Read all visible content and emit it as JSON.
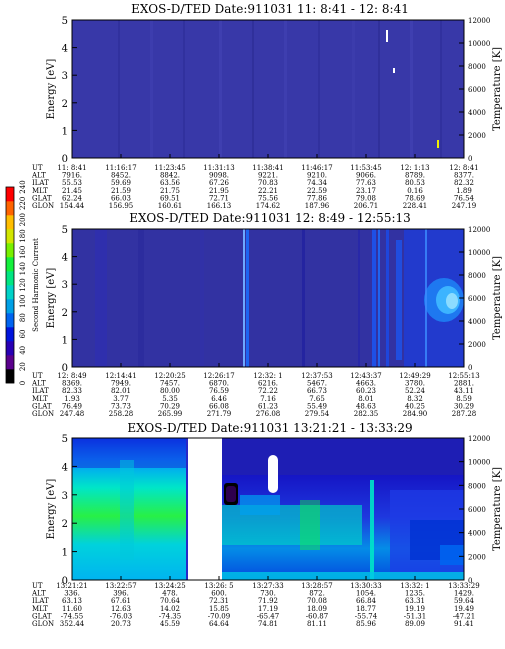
{
  "colorbar": {
    "title": "Second Harmonic Current",
    "ticks": [
      "0",
      "20",
      "40",
      "60",
      "80",
      "100",
      "120",
      "140",
      "160",
      "180",
      "200",
      "220",
      "240"
    ],
    "colors": [
      "#000000",
      "#5a008c",
      "#2800b4",
      "#0014dc",
      "#0064f0",
      "#00a0e6",
      "#00d2c8",
      "#00e682",
      "#14f03c",
      "#78f000",
      "#d2e600",
      "#ffbe00",
      "#ff6400",
      "#ff0000"
    ]
  },
  "chart_data": [
    {
      "type": "heatmap",
      "title": "EXOS-D/TED   Date:911031  11: 8:41 - 12: 8:41",
      "ylabel": "Energy [eV]",
      "y2label": "Temperature [K]",
      "ylim": [
        0,
        5
      ],
      "y2lim": [
        0,
        12000
      ],
      "yticks": [
        "0",
        "1",
        "2",
        "3",
        "4",
        "5"
      ],
      "y2ticks": [
        "0",
        "2000",
        "4000",
        "6000",
        "8000",
        "10000",
        "12000"
      ],
      "background": "#3838a8",
      "row_labels": [
        "UT",
        "ALT",
        "ILAT",
        "MLT",
        "GLAT",
        "GLON"
      ],
      "columns": [
        [
          "11: 8:41",
          "7916.",
          "55.53",
          "21.45",
          "62.24",
          "154.44"
        ],
        [
          "11:16:17",
          "8452.",
          "59.69",
          "21.59",
          "66.03",
          "156.95"
        ],
        [
          "11:23:45",
          "8842.",
          "63.56",
          "21.75",
          "69.51",
          "160.61"
        ],
        [
          "11:31:13",
          "9098.",
          "67.26",
          "21.95",
          "72.71",
          "166.13"
        ],
        [
          "11:38:41",
          "9221.",
          "70.83",
          "22.21",
          "75.56",
          "174.62"
        ],
        [
          "11:46:17",
          "9210.",
          "74.34",
          "22.59",
          "77.86",
          "187.96"
        ],
        [
          "11:53:45",
          "9066.",
          "77.63",
          "23.17",
          "79.08",
          "206.71"
        ],
        [
          "12: 1:13",
          "8789.",
          "80.53",
          "0.16",
          "78.69",
          "228.41"
        ],
        [
          "12: 8:41",
          "8377.",
          "82.32",
          "1.89",
          "76.54",
          "247.19"
        ]
      ]
    },
    {
      "type": "heatmap",
      "title": "EXOS-D/TED   Date:911031  12: 8:49 - 12:55:13",
      "ylabel": "Energy [eV]",
      "y2label": "Temperature [K]",
      "ylim": [
        0,
        5
      ],
      "y2lim": [
        0,
        12000
      ],
      "yticks": [
        "0",
        "1",
        "2",
        "3",
        "4",
        "5"
      ],
      "y2ticks": [
        "0",
        "2000",
        "4000",
        "6000",
        "8000",
        "10000",
        "12000"
      ],
      "background": "#3232a2",
      "row_labels": [
        "UT",
        "ALT",
        "ILAT",
        "MLT",
        "GLAT",
        "GLON"
      ],
      "columns": [
        [
          "12: 8:49",
          "8369.",
          "82.33",
          "1.93",
          "76.49",
          "247.48"
        ],
        [
          "12:14:41",
          "7949.",
          "82.01",
          "3.77",
          "73.73",
          "258.28"
        ],
        [
          "12:20:25",
          "7457.",
          "80.00",
          "5.35",
          "70.29",
          "265.99"
        ],
        [
          "12:26:17",
          "6870.",
          "76.59",
          "6.46",
          "66.08",
          "271.79"
        ],
        [
          "12:32: 1",
          "6216.",
          "72.22",
          "7.16",
          "61.23",
          "276.08"
        ],
        [
          "12:37:53",
          "5467.",
          "66.73",
          "7.65",
          "55.49",
          "279.54"
        ],
        [
          "12:43:37",
          "4663.",
          "60.23",
          "8.01",
          "48.63",
          "282.35"
        ],
        [
          "12:49:29",
          "3780.",
          "52.24",
          "8.32",
          "40.25",
          "284.90"
        ],
        [
          "12:55:13",
          "2881.",
          "43.11",
          "8.59",
          "30.29",
          "287.28"
        ]
      ]
    },
    {
      "type": "heatmap",
      "title": "EXOS-D/TED   Date:911031  13:21:21 - 13:33:29",
      "ylabel": "Energy [eV]",
      "y2label": "Temperature [K]",
      "ylim": [
        0,
        5
      ],
      "y2lim": [
        0,
        12000
      ],
      "yticks": [
        "0",
        "1",
        "2",
        "3",
        "4",
        "5"
      ],
      "y2ticks": [
        "0",
        "2000",
        "4000",
        "6000",
        "8000",
        "10000",
        "12000"
      ],
      "background": "#1e1eb4",
      "row_labels": [
        "UT",
        "ALT",
        "ILAT",
        "MLT",
        "GLAT",
        "GLON"
      ],
      "columns": [
        [
          "13:21:21",
          "336.",
          "63.13",
          "11.60",
          "-74.55",
          "352.44"
        ],
        [
          "13:22:57",
          "396.",
          "67.61",
          "12.63",
          "-76.03",
          "20.73"
        ],
        [
          "13:24:25",
          "478.",
          "70.64",
          "14.02",
          "-74.35",
          "45.59"
        ],
        [
          "13:26: 5",
          "600.",
          "72.31",
          "15.85",
          "-70.09",
          "64.64"
        ],
        [
          "13:27:33",
          "730.",
          "71.92",
          "17.19",
          "-65.47",
          "74.81"
        ],
        [
          "13:28:57",
          "872.",
          "70.08",
          "18.09",
          "-60.87",
          "81.11"
        ],
        [
          "13:30:33",
          "1054.",
          "66.84",
          "18.77",
          "-55.74",
          "85.96"
        ],
        [
          "13:32: 1",
          "1235.",
          "63.31",
          "19.19",
          "-51.31",
          "89.09"
        ],
        [
          "13:33:29",
          "1429.",
          "59.64",
          "19.49",
          "-47.21",
          "91.41"
        ]
      ]
    }
  ]
}
